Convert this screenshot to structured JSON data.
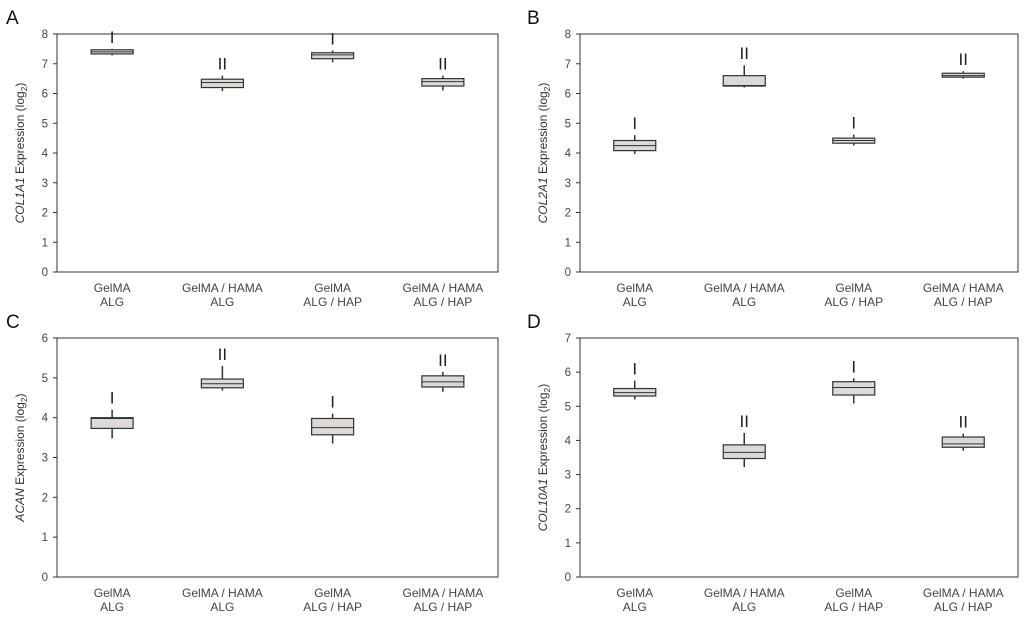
{
  "chart_data": [
    {
      "type": "box",
      "panel": "A",
      "gene": "COL1A1",
      "ylabel_suffix": " Expression (log",
      "ylabel_sub": "2",
      "ylabel_close": ")",
      "ylim": [
        0,
        8
      ],
      "yticks": [
        "0",
        "1",
        "2",
        "3",
        "4",
        "5",
        "6",
        "7",
        "8"
      ],
      "categories": [
        {
          "line1": "GelMA",
          "line2": "ALG"
        },
        {
          "line1": "GelMA / HAMA",
          "line2": "ALG"
        },
        {
          "line1": "GelMA",
          "line2": "ALG / HAP"
        },
        {
          "line1": "GelMA / HAMA",
          "line2": "ALG / HAP"
        }
      ],
      "boxes": [
        {
          "whisker_low": 7.28,
          "q1": 7.33,
          "median": 7.4,
          "q3": 7.47,
          "whisker_high": 7.5,
          "sig": "I"
        },
        {
          "whisker_low": 6.08,
          "q1": 6.2,
          "median": 6.37,
          "q3": 6.48,
          "whisker_high": 6.6,
          "sig": "II"
        },
        {
          "whisker_low": 7.05,
          "q1": 7.17,
          "median": 7.3,
          "q3": 7.37,
          "whisker_high": 7.45,
          "sig": "I"
        },
        {
          "whisker_low": 6.1,
          "q1": 6.25,
          "median": 6.4,
          "q3": 6.5,
          "whisker_high": 6.6,
          "sig": "II"
        }
      ]
    },
    {
      "type": "box",
      "panel": "B",
      "gene": "COL2A1",
      "ylabel_suffix": " Expression (log",
      "ylabel_sub": "2",
      "ylabel_close": ")",
      "ylim": [
        0,
        8
      ],
      "yticks": [
        "0",
        "1",
        "2",
        "3",
        "4",
        "5",
        "6",
        "7",
        "8"
      ],
      "categories": [
        {
          "line1": "GelMA",
          "line2": "ALG"
        },
        {
          "line1": "GelMA / HAMA",
          "line2": "ALG"
        },
        {
          "line1": "GelMA",
          "line2": "ALG / HAP"
        },
        {
          "line1": "GelMA / HAMA",
          "line2": "ALG / HAP"
        }
      ],
      "boxes": [
        {
          "whisker_low": 3.97,
          "q1": 4.08,
          "median": 4.25,
          "q3": 4.42,
          "whisker_high": 4.6,
          "sig": "I"
        },
        {
          "whisker_low": 6.2,
          "q1": 6.25,
          "median": 6.27,
          "q3": 6.6,
          "whisker_high": 6.95,
          "sig": "II"
        },
        {
          "whisker_low": 4.25,
          "q1": 4.33,
          "median": 4.42,
          "q3": 4.5,
          "whisker_high": 4.62,
          "sig": "I"
        },
        {
          "whisker_low": 6.5,
          "q1": 6.55,
          "median": 6.6,
          "q3": 6.68,
          "whisker_high": 6.75,
          "sig": "II"
        }
      ]
    },
    {
      "type": "box",
      "panel": "C",
      "gene": "ACAN",
      "ylabel_suffix": " Expression (log",
      "ylabel_sub": "2",
      "ylabel_close": ")",
      "ylim": [
        0,
        6
      ],
      "yticks": [
        "0",
        "1",
        "2",
        "3",
        "4",
        "5",
        "6"
      ],
      "categories": [
        {
          "line1": "GelMA",
          "line2": "ALG"
        },
        {
          "line1": "GelMA / HAMA",
          "line2": "ALG"
        },
        {
          "line1": "GelMA",
          "line2": "ALG / HAP"
        },
        {
          "line1": "GelMA / HAMA",
          "line2": "ALG / HAP"
        }
      ],
      "boxes": [
        {
          "whisker_low": 3.48,
          "q1": 3.73,
          "median": 3.98,
          "q3": 4.0,
          "whisker_high": 4.2,
          "sig": "I"
        },
        {
          "whisker_low": 4.68,
          "q1": 4.75,
          "median": 4.85,
          "q3": 4.97,
          "whisker_high": 5.3,
          "sig": "II"
        },
        {
          "whisker_low": 3.35,
          "q1": 3.57,
          "median": 3.75,
          "q3": 3.98,
          "whisker_high": 4.1,
          "sig": "I"
        },
        {
          "whisker_low": 4.65,
          "q1": 4.77,
          "median": 4.9,
          "q3": 5.05,
          "whisker_high": 5.15,
          "sig": "II"
        }
      ]
    },
    {
      "type": "box",
      "panel": "D",
      "gene": "COL10A1",
      "ylabel_suffix": " Expression (log",
      "ylabel_sub": "2",
      "ylabel_close": ")",
      "ylim": [
        0,
        7
      ],
      "yticks": [
        "0",
        "1",
        "2",
        "3",
        "4",
        "5",
        "6",
        "7"
      ],
      "categories": [
        {
          "line1": "GelMA",
          "line2": "ALG"
        },
        {
          "line1": "GelMA / HAMA",
          "line2": "ALG"
        },
        {
          "line1": "GelMA",
          "line2": "ALG / HAP"
        },
        {
          "line1": "GelMA / HAMA",
          "line2": "ALG / HAP"
        }
      ],
      "boxes": [
        {
          "whisker_low": 5.2,
          "q1": 5.3,
          "median": 5.4,
          "q3": 5.52,
          "whisker_high": 5.75,
          "sig": "I"
        },
        {
          "whisker_low": 3.22,
          "q1": 3.47,
          "median": 3.65,
          "q3": 3.87,
          "whisker_high": 4.22,
          "sig": "II"
        },
        {
          "whisker_low": 5.08,
          "q1": 5.33,
          "median": 5.55,
          "q3": 5.72,
          "whisker_high": 5.82,
          "sig": "I"
        },
        {
          "whisker_low": 3.7,
          "q1": 3.8,
          "median": 3.9,
          "q3": 4.1,
          "whisker_high": 4.2,
          "sig": "II"
        }
      ]
    }
  ],
  "style": {
    "box_fill": "#ddd9d6",
    "box_stroke": "#333333",
    "axis_color": "#333333"
  }
}
